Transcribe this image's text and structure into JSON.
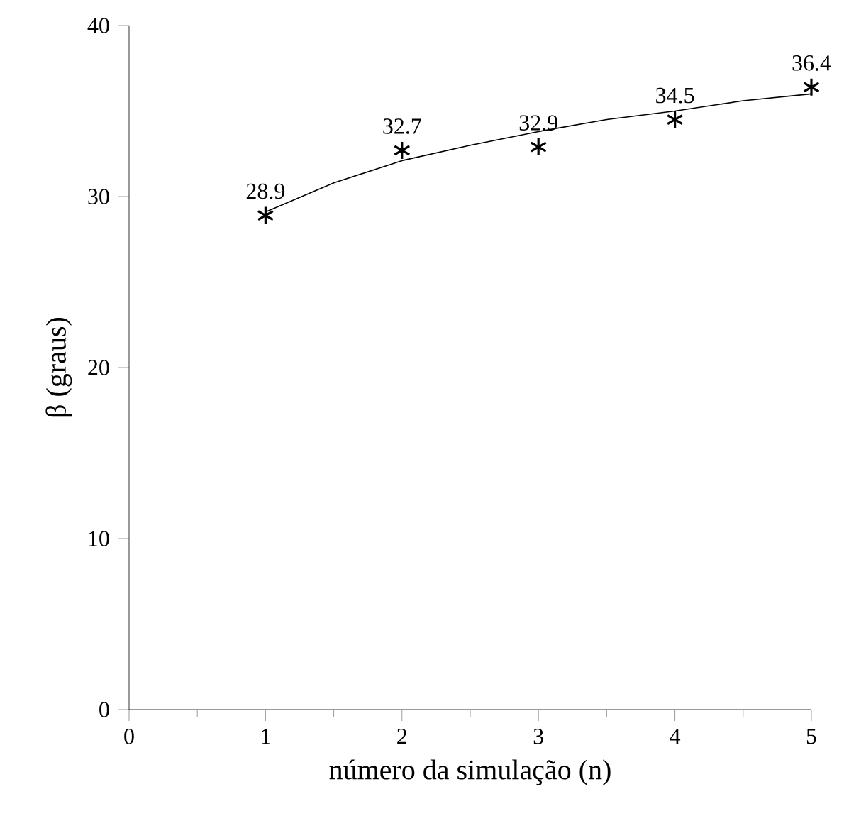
{
  "chart_data": {
    "type": "scatter",
    "xlabel": "número da simulação (n)",
    "ylabel": "β (graus)",
    "x": [
      1,
      2,
      3,
      4,
      5
    ],
    "marker": "cross",
    "series": [
      {
        "color": "#000000",
        "values": [
          28.9,
          32.7,
          32.9,
          34.5,
          36.4
        ],
        "value_labels": [
          "28.9",
          "32.7",
          "32.9",
          "34.5",
          "36.4"
        ]
      },
      {
        "type": "line",
        "marker": "none",
        "line_style": "solid",
        "color": "#000000",
        "x": [
          1,
          1.5,
          2,
          2.5,
          3,
          3.5,
          4,
          4.5,
          5
        ],
        "values": [
          29.1,
          30.8,
          32.1,
          33.0,
          33.8,
          34.5,
          35.0,
          35.6,
          36.0
        ]
      }
    ],
    "xlim": [
      0,
      5
    ],
    "ylim": [
      0,
      40
    ],
    "xticks": [
      0,
      1,
      2,
      3,
      4,
      5
    ],
    "yticks": [
      0,
      10,
      20,
      30,
      40
    ]
  }
}
